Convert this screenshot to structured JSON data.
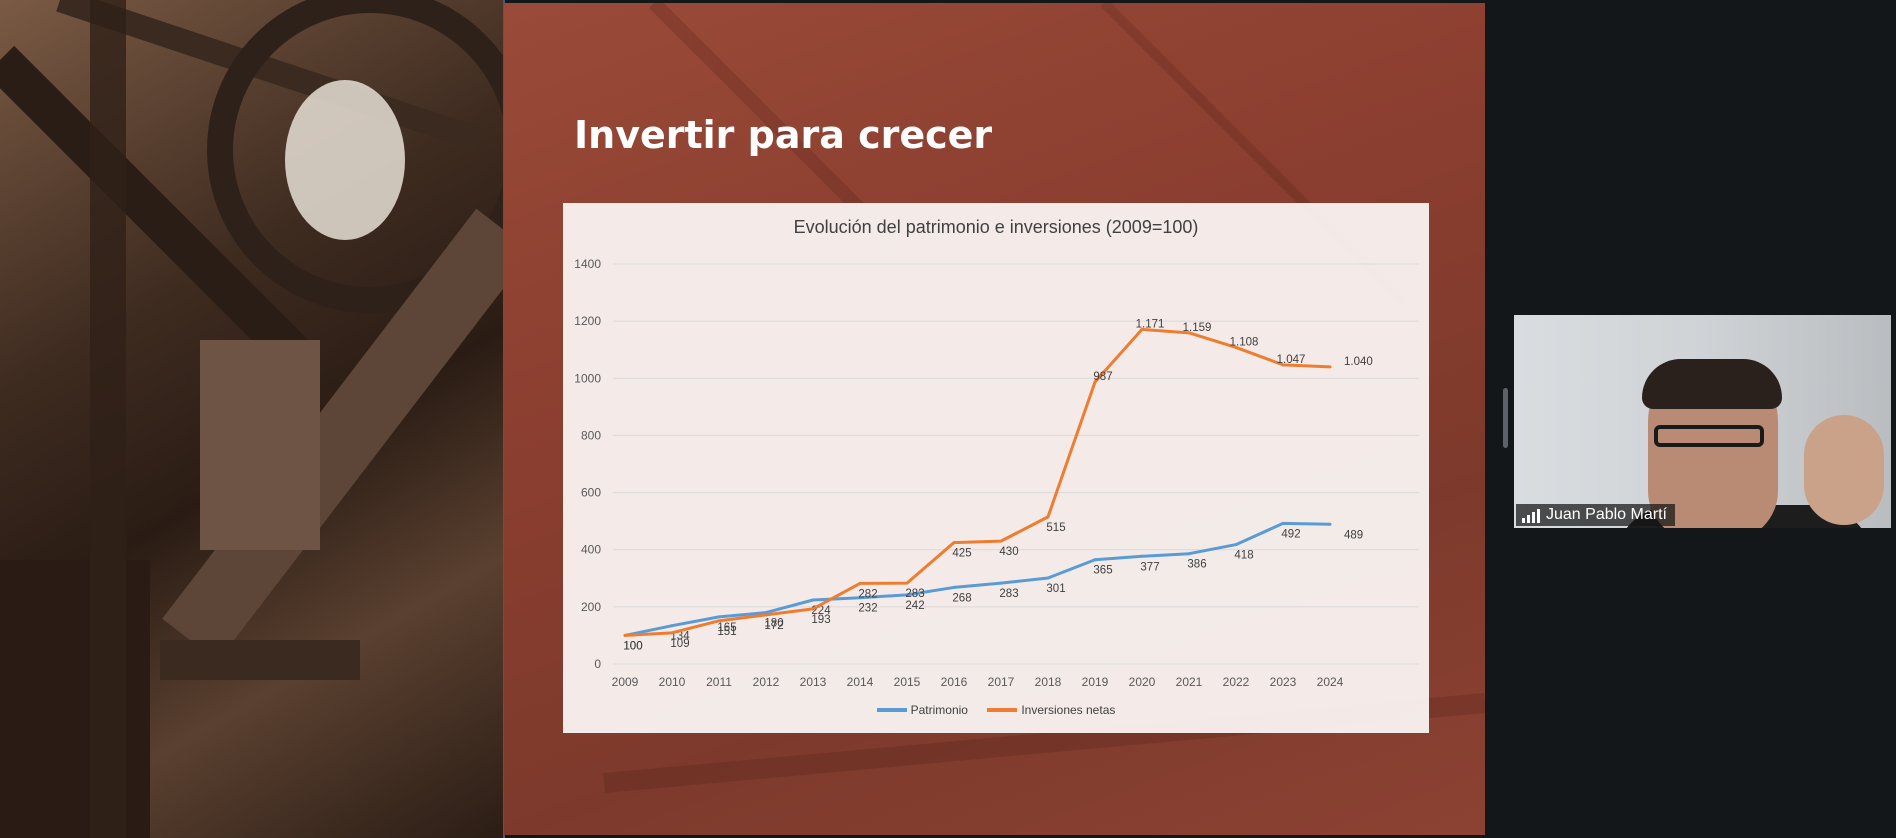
{
  "slide": {
    "title": "Invertir para crecer"
  },
  "chart_data": {
    "type": "line",
    "title": "Evolución del patrimonio e inversiones (2009=100)",
    "x": [
      "2009",
      "2010",
      "2011",
      "2012",
      "2013",
      "2014",
      "2015",
      "2016",
      "2017",
      "2018",
      "2019",
      "2020",
      "2021",
      "2022",
      "2023",
      "2024"
    ],
    "y_ticks": [
      "0",
      "200",
      "400",
      "600",
      "800",
      "1000",
      "1200",
      "1400"
    ],
    "ylim": [
      0,
      1400
    ],
    "grid": true,
    "legend_position": "bottom",
    "series": [
      {
        "name": "Patrimonio",
        "color": "#5b9bd5",
        "values": [
          100,
          134,
          165,
          180,
          224,
          232,
          242,
          268,
          283,
          301,
          365,
          377,
          386,
          418,
          492,
          489
        ],
        "labels": [
          "100",
          "134",
          "165",
          "180",
          "224",
          "232",
          "242",
          "268",
          "283",
          "301",
          "365",
          "377",
          "386",
          "418",
          "492",
          "489"
        ]
      },
      {
        "name": "Inversiones netas",
        "color": "#ed7d31",
        "values": [
          100,
          109,
          151,
          172,
          193,
          282,
          283,
          425,
          430,
          515,
          987,
          1171,
          1159,
          1108,
          1047,
          1040
        ],
        "labels": [
          "100",
          "109",
          "151",
          "172",
          "193",
          "282",
          "283",
          "425",
          "430",
          "515",
          "987",
          "1.171",
          "1.159",
          "1.108",
          "1.047",
          "1.040"
        ]
      }
    ]
  },
  "participant": {
    "name": "Juan Pablo Martí"
  }
}
